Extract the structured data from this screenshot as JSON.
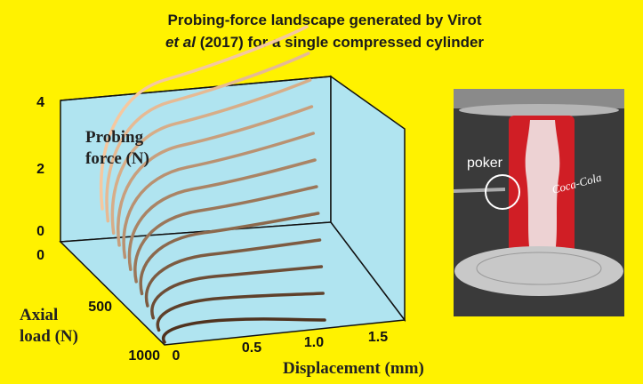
{
  "title": {
    "line1": "Probing-force landscape generated by Virot",
    "line2_italic": "et al",
    "line2_rest": " (2017) for a single compressed cylinder"
  },
  "plot": {
    "z_axis": {
      "title_line1": "Probing",
      "title_line2": "force (N)",
      "ticks": [
        "4",
        "2",
        "0"
      ]
    },
    "y_axis": {
      "title_line1": "Axial",
      "title_line2": "load (N)",
      "ticks": [
        "0",
        "500",
        "1000"
      ]
    },
    "x_axis": {
      "title": "Displacement (mm)",
      "ticks": [
        "0",
        "0.5",
        "1.0",
        "1.5"
      ]
    }
  },
  "photo": {
    "label": "poker",
    "can_logo": "Coca-Cola"
  }
}
